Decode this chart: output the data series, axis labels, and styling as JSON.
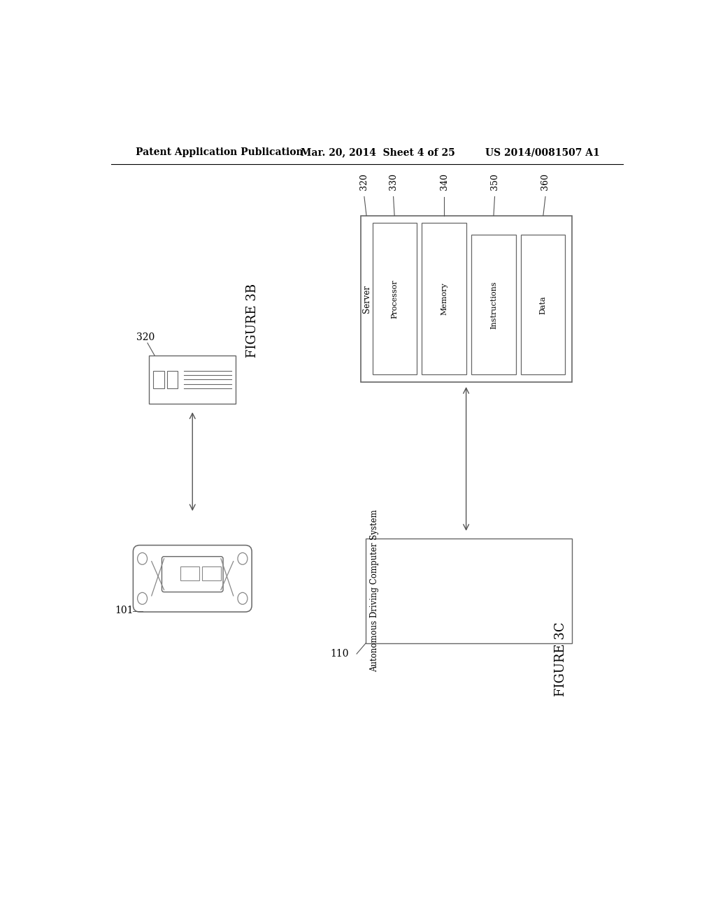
{
  "bg_color": "#ffffff",
  "header_left": "Patent Application Publication",
  "header_center": "Mar. 20, 2014  Sheet 4 of 25",
  "header_right": "US 2014/0081507 A1",
  "figure3b_label": "FIGURE 3B",
  "figure3c_label": "FIGURE 3C",
  "label_320_left": "320",
  "label_101": "101",
  "label_110": "110",
  "server_labels": [
    "320",
    "330",
    "340",
    "350",
    "360"
  ],
  "server_inner_labels": [
    "Server",
    "Processor",
    "Memory",
    "Instructions",
    "Data"
  ],
  "adcs_label": "Autonomous Driving Computer System",
  "line_color": "#555555",
  "box_color": "#666666"
}
